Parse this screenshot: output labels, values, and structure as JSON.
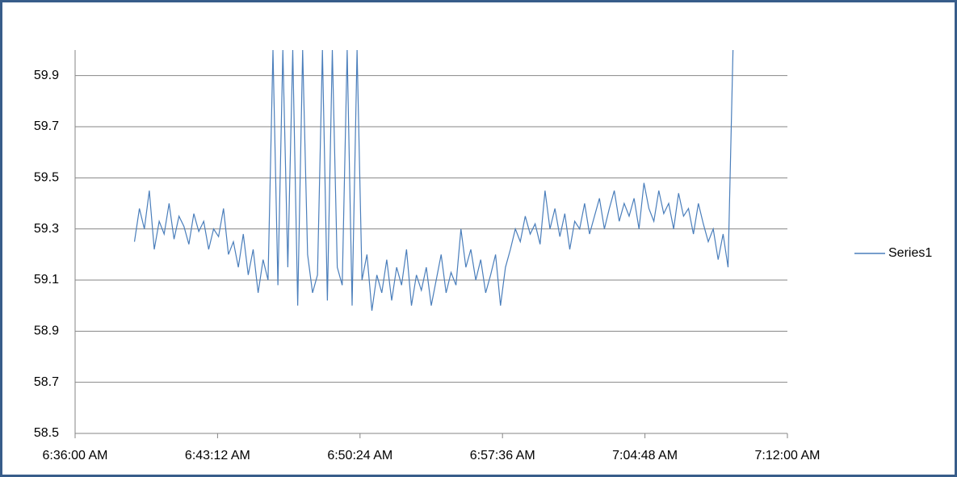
{
  "chart_data": {
    "type": "line",
    "x": [
      23940,
      23955,
      23970,
      23985,
      24000,
      24015,
      24030,
      24045,
      24060,
      24075,
      24090,
      24105,
      24120,
      24135,
      24150,
      24165,
      24180,
      24195,
      24210,
      24225,
      24240,
      24255,
      24270,
      24285,
      24300,
      24315,
      24330,
      24345,
      24360,
      24375,
      24390,
      24405,
      24420,
      24435,
      24450,
      24465,
      24480,
      24495,
      24510,
      24525,
      24540,
      24555,
      24570,
      24585,
      24600,
      24615,
      24630,
      24645,
      24660,
      24675,
      24690,
      24705,
      24720,
      24735,
      24750,
      24765,
      24780,
      24795,
      24810,
      24825,
      24840,
      24855,
      24870,
      24885,
      24900,
      24915,
      24930,
      24945,
      24960,
      24975,
      24990,
      25005,
      25020,
      25035,
      25050,
      25065,
      25080,
      25095,
      25110,
      25125,
      25140,
      25155,
      25170,
      25185,
      25200,
      25215,
      25230,
      25245,
      25260,
      25275,
      25290,
      25305,
      25320,
      25335,
      25350,
      25365,
      25380,
      25395,
      25410,
      25425,
      25440,
      25455,
      25470,
      25485,
      25500,
      25515,
      25530,
      25545,
      25560,
      25575,
      25590,
      25605,
      25620,
      25635,
      25650,
      25665,
      25680,
      25695,
      25710,
      25725,
      25740,
      25755
    ],
    "series": [
      {
        "name": "Series1",
        "color": "#4a7ebb",
        "values": [
          59.25,
          59.38,
          59.3,
          59.45,
          59.22,
          59.33,
          59.28,
          59.4,
          59.26,
          59.35,
          59.31,
          59.24,
          59.36,
          59.29,
          59.33,
          59.22,
          59.3,
          59.27,
          59.38,
          59.2,
          59.25,
          59.15,
          59.28,
          59.12,
          59.22,
          59.05,
          59.18,
          59.1,
          60,
          59.08,
          60,
          59.15,
          60,
          59.0,
          60,
          59.2,
          59.05,
          59.12,
          60,
          59.02,
          60,
          59.15,
          59.08,
          60,
          59.0,
          60,
          59.1,
          59.2,
          58.98,
          59.12,
          59.05,
          59.18,
          59.02,
          59.15,
          59.08,
          59.22,
          59.0,
          59.12,
          59.06,
          59.15,
          59.0,
          59.1,
          59.2,
          59.05,
          59.13,
          59.08,
          59.3,
          59.15,
          59.22,
          59.1,
          59.18,
          59.05,
          59.12,
          59.2,
          59.0,
          59.15,
          59.22,
          59.3,
          59.25,
          59.35,
          59.28,
          59.32,
          59.24,
          59.45,
          59.3,
          59.38,
          59.27,
          59.36,
          59.22,
          59.33,
          59.3,
          59.4,
          59.28,
          59.35,
          59.42,
          59.3,
          59.38,
          59.45,
          59.33,
          59.4,
          59.35,
          59.42,
          59.3,
          59.48,
          59.38,
          59.33,
          59.45,
          59.36,
          59.4,
          59.3,
          59.44,
          59.35,
          59.38,
          59.28,
          59.4,
          59.32,
          59.25,
          59.3,
          59.18,
          59.28,
          59.15,
          60
        ]
      }
    ],
    "xlim": [
      23760,
      25920
    ],
    "xticks": [
      {
        "value": 23760,
        "label": "6:36:00 AM"
      },
      {
        "value": 24192,
        "label": "6:43:12 AM"
      },
      {
        "value": 24624,
        "label": "6:50:24 AM"
      },
      {
        "value": 25056,
        "label": "6:57:36 AM"
      },
      {
        "value": 25488,
        "label": "7:04:48 AM"
      },
      {
        "value": 25920,
        "label": "7:12:00 AM"
      }
    ],
    "ylim": [
      58.5,
      60
    ],
    "yticks": [
      58.5,
      58.7,
      58.9,
      59.1,
      59.3,
      59.5,
      59.7,
      59.9
    ],
    "grid": true,
    "legend": "right"
  }
}
